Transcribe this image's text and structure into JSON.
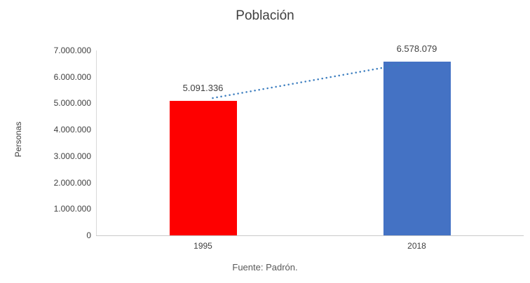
{
  "chart_data": {
    "type": "bar",
    "title": "Población",
    "ylabel": "Personas",
    "xlabel": "",
    "categories": [
      "1995",
      "2018"
    ],
    "values": [
      5091336,
      6578079
    ],
    "value_labels": [
      "5.091.336",
      "6.578.079"
    ],
    "bar_colors": [
      "#fe0000",
      "#4472c4"
    ],
    "ylim": [
      0,
      7000000
    ],
    "ytick_interval": 1000000,
    "ytick_labels": [
      "0",
      "1.000.000",
      "2.000.000",
      "3.000.000",
      "4.000.000",
      "5.000.000",
      "6.000.000",
      "7.000.000"
    ],
    "grid": false,
    "legend": "none",
    "trendline": {
      "style": "dotted",
      "color": "#3b7dbf",
      "connects": [
        "1995",
        "2018"
      ]
    },
    "axis_color": "#c9c9c9",
    "source": "Fuente: Padrón."
  }
}
